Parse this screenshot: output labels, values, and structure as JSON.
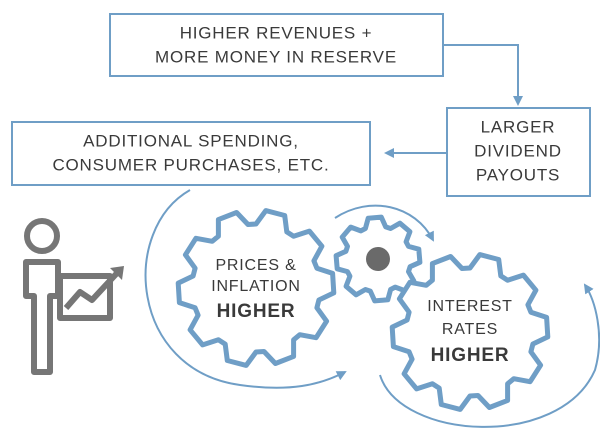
{
  "boxes": [
    {
      "lines": [
        "HIGHER REVENUES +",
        "MORE MONEY IN RESERVE"
      ]
    },
    {
      "lines": [
        "LARGER",
        "DIVIDEND",
        "PAYOUTS"
      ]
    },
    {
      "lines": [
        "ADDITIONAL SPENDING,",
        "CONSUMER PURCHASES, ETC."
      ]
    }
  ],
  "gears": [
    {
      "lines": [
        "PRICES &",
        "INFLATION"
      ],
      "emphasis": "HIGHER"
    },
    {
      "lines": [
        "INTEREST",
        "RATES"
      ],
      "emphasis": "HIGHER"
    }
  ]
}
